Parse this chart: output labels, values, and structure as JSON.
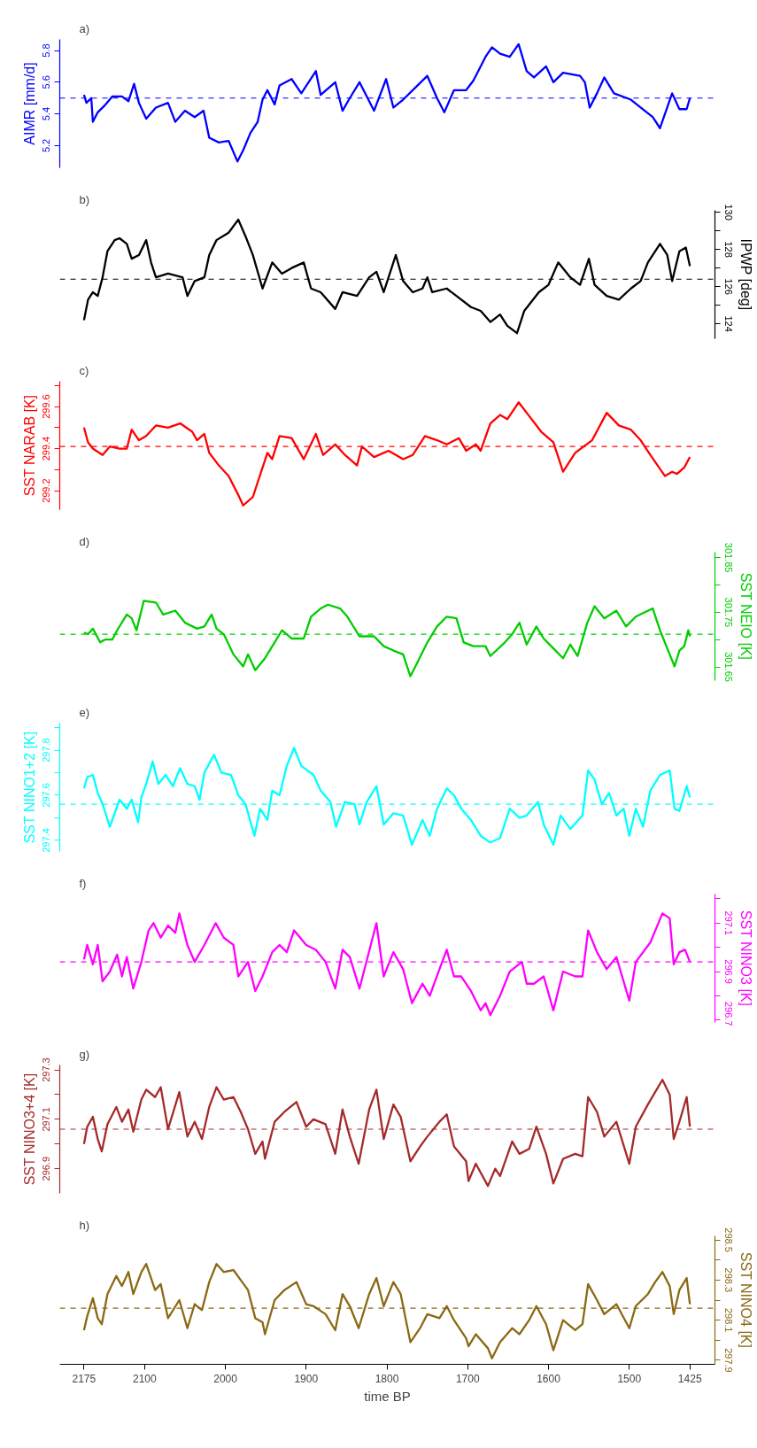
{
  "chart_data": [
    {
      "type": "line",
      "title": "a)",
      "ylabel": "AIMR [mm/d]",
      "tick_labels": "y",
      "xlim": [
        2205,
        1394
      ],
      "ylim": [
        5.06,
        5.87
      ],
      "yticks": [
        5.2,
        5.4,
        5.6,
        5.8
      ],
      "x": [
        2175,
        2172,
        2166,
        2164,
        2158,
        2150,
        2140,
        2128,
        2120,
        2113,
        2107,
        2098,
        2086,
        2071,
        2062,
        2050,
        2038,
        2027,
        2020,
        2008,
        1996,
        1985,
        1978,
        1969,
        1960,
        1954,
        1948,
        1939,
        1933,
        1918,
        1906,
        1888,
        1882,
        1864,
        1855,
        1846,
        1834,
        1816,
        1801,
        1792,
        1780,
        1762,
        1750,
        1738,
        1729,
        1717,
        1702,
        1693,
        1678,
        1670,
        1660,
        1648,
        1637,
        1627,
        1618,
        1603,
        1594,
        1582,
        1561,
        1555,
        1549,
        1540,
        1531,
        1519,
        1498,
        1486,
        1471,
        1462,
        1447,
        1438,
        1429,
        1425
      ],
      "series": [
        {
          "color": "#0000ff",
          "values": [
            5.52,
            5.47,
            5.5,
            5.35,
            5.41,
            5.45,
            5.51,
            5.51,
            5.48,
            5.59,
            5.47,
            5.37,
            5.44,
            5.47,
            5.35,
            5.42,
            5.38,
            5.42,
            5.25,
            5.22,
            5.23,
            5.1,
            5.17,
            5.28,
            5.35,
            5.49,
            5.55,
            5.46,
            5.58,
            5.62,
            5.53,
            5.67,
            5.52,
            5.6,
            5.42,
            5.5,
            5.6,
            5.42,
            5.62,
            5.44,
            5.49,
            5.58,
            5.64,
            5.5,
            5.41,
            5.55,
            5.55,
            5.61,
            5.76,
            5.82,
            5.78,
            5.76,
            5.84,
            5.67,
            5.63,
            5.7,
            5.6,
            5.66,
            5.64,
            5.6,
            5.44,
            5.53,
            5.63,
            5.53,
            5.49,
            5.44,
            5.38,
            5.31,
            5.53,
            5.43,
            5.43,
            5.5
          ]
        }
      ],
      "ref_lines": [
        {
          "axis": "y",
          "value": 5.5,
          "color": "#0000ff",
          "line_style": "dashed"
        }
      ]
    },
    {
      "type": "line",
      "title": "b)",
      "y2label": "IPWP [deg]",
      "tick_labels": "y2",
      "xlim": [
        2205,
        1394
      ],
      "y2lim": [
        123.2,
        130.1
      ],
      "y2ticks": [
        124,
        {
          "value": 125,
          "label": null
        },
        126,
        {
          "value": 127,
          "label": null
        },
        128,
        {
          "value": 129,
          "label": null
        },
        130
      ],
      "x": [
        2175,
        2170,
        2164,
        2158,
        2152,
        2146,
        2137,
        2131,
        2122,
        2116,
        2107,
        2098,
        2092,
        2086,
        2071,
        2053,
        2047,
        2038,
        2026,
        2020,
        2011,
        1996,
        1984,
        1975,
        1966,
        1954,
        1942,
        1930,
        1918,
        1903,
        1894,
        1882,
        1864,
        1855,
        1837,
        1822,
        1813,
        1804,
        1789,
        1780,
        1768,
        1756,
        1750,
        1744,
        1726,
        1714,
        1696,
        1684,
        1672,
        1660,
        1651,
        1639,
        1630,
        1612,
        1600,
        1588,
        1573,
        1561,
        1550,
        1543,
        1528,
        1513,
        1498,
        1486,
        1477,
        1462,
        1453,
        1447,
        1438,
        1430,
        1425
      ],
      "series": [
        {
          "color": "#000000",
          "axis": "y2",
          "values": [
            124.2,
            125.3,
            125.7,
            125.5,
            126.5,
            127.9,
            128.5,
            128.6,
            128.3,
            127.5,
            127.7,
            128.5,
            127.3,
            126.5,
            126.7,
            126.5,
            125.5,
            126.3,
            126.5,
            127.7,
            128.5,
            128.9,
            129.6,
            128.7,
            127.7,
            125.9,
            127.3,
            126.7,
            127.0,
            127.3,
            125.9,
            125.7,
            124.8,
            125.7,
            125.5,
            126.5,
            126.8,
            125.7,
            127.7,
            126.3,
            125.7,
            125.9,
            126.5,
            125.7,
            125.9,
            125.5,
            124.9,
            124.7,
            124.1,
            124.5,
            123.9,
            123.5,
            124.7,
            125.7,
            126.1,
            127.3,
            126.5,
            126.1,
            127.5,
            126.1,
            125.5,
            125.3,
            125.9,
            126.3,
            127.3,
            128.3,
            127.7,
            126.3,
            127.9,
            128.1,
            127.1
          ]
        }
      ],
      "ref_lines": [
        {
          "axis": "y2",
          "value": 126.4,
          "color": "#000000",
          "line_style": "dashed"
        }
      ]
    },
    {
      "type": "line",
      "title": "c)",
      "ylabel": "SST NARAB [K]",
      "tick_labels": "y",
      "xlim": [
        2205,
        1394
      ],
      "ylim": [
        299.11,
        299.72
      ],
      "yticks": [
        299.2,
        {
          "value": 299.3,
          "label": null
        },
        299.4,
        {
          "value": 299.5,
          "label": null
        },
        299.6,
        {
          "value": 299.7,
          "label": null
        }
      ],
      "x": [
        2175,
        2170,
        2164,
        2152,
        2143,
        2131,
        2122,
        2116,
        2107,
        2098,
        2086,
        2071,
        2056,
        2041,
        2035,
        2026,
        2020,
        2008,
        1996,
        1984,
        1978,
        1966,
        1948,
        1942,
        1933,
        1918,
        1903,
        1888,
        1879,
        1864,
        1852,
        1837,
        1831,
        1816,
        1798,
        1780,
        1768,
        1753,
        1738,
        1726,
        1711,
        1702,
        1690,
        1684,
        1672,
        1660,
        1651,
        1637,
        1627,
        1609,
        1594,
        1582,
        1567,
        1546,
        1528,
        1513,
        1498,
        1486,
        1474,
        1456,
        1447,
        1441,
        1432,
        1425
      ],
      "series": [
        {
          "color": "#ff0000",
          "values": [
            299.5,
            299.43,
            299.4,
            299.37,
            299.41,
            299.4,
            299.4,
            299.49,
            299.44,
            299.46,
            299.51,
            299.5,
            299.52,
            299.48,
            299.44,
            299.47,
            299.38,
            299.32,
            299.27,
            299.18,
            299.13,
            299.17,
            299.38,
            299.35,
            299.46,
            299.45,
            299.35,
            299.47,
            299.37,
            299.42,
            299.37,
            299.32,
            299.41,
            299.36,
            299.39,
            299.35,
            299.37,
            299.46,
            299.44,
            299.42,
            299.45,
            299.39,
            299.42,
            299.39,
            299.52,
            299.56,
            299.54,
            299.62,
            299.57,
            299.48,
            299.43,
            299.29,
            299.38,
            299.44,
            299.57,
            299.51,
            299.49,
            299.44,
            299.37,
            299.27,
            299.29,
            299.28,
            299.31,
            299.36
          ]
        }
      ],
      "ref_lines": [
        {
          "axis": "y",
          "value": 299.41,
          "color": "#ff0000",
          "line_style": "dashed"
        }
      ]
    },
    {
      "type": "line",
      "title": "d)",
      "y2label": "SST NEIO [K]",
      "tick_labels": "y2",
      "xlim": [
        2205,
        1394
      ],
      "y2lim": [
        301.625,
        301.86
      ],
      "y2ticks": [
        301.65,
        {
          "value": 301.7,
          "label": null
        },
        301.75,
        {
          "value": 301.8,
          "label": null
        },
        301.85
      ],
      "x": [
        2175,
        2170,
        2164,
        2155,
        2149,
        2140,
        2134,
        2122,
        2116,
        2110,
        2101,
        2086,
        2077,
        2062,
        2050,
        2035,
        2026,
        2017,
        2011,
        2002,
        1990,
        1978,
        1972,
        1963,
        1951,
        1939,
        1930,
        1918,
        1903,
        1894,
        1882,
        1873,
        1858,
        1849,
        1834,
        1816,
        1804,
        1792,
        1780,
        1771,
        1762,
        1750,
        1738,
        1726,
        1714,
        1705,
        1693,
        1678,
        1672,
        1654,
        1645,
        1636,
        1627,
        1615,
        1606,
        1594,
        1582,
        1573,
        1564,
        1552,
        1543,
        1531,
        1516,
        1504,
        1492,
        1471,
        1462,
        1453,
        1444,
        1438,
        1432,
        1427,
        1425
      ],
      "series": [
        {
          "color": "#00cd00",
          "axis": "y2",
          "values": [
            301.713,
            301.71,
            301.72,
            301.695,
            301.7,
            301.7,
            301.717,
            301.746,
            301.739,
            301.717,
            301.771,
            301.768,
            301.746,
            301.753,
            301.731,
            301.72,
            301.724,
            301.746,
            301.72,
            301.71,
            301.673,
            301.651,
            301.673,
            301.644,
            301.666,
            301.695,
            301.717,
            301.702,
            301.702,
            301.742,
            301.757,
            301.764,
            301.757,
            301.742,
            301.706,
            301.706,
            301.688,
            301.68,
            301.673,
            301.633,
            301.659,
            301.695,
            301.724,
            301.742,
            301.739,
            301.695,
            301.688,
            301.688,
            301.67,
            301.695,
            301.71,
            301.731,
            301.691,
            301.724,
            301.702,
            301.684,
            301.666,
            301.691,
            301.67,
            301.731,
            301.761,
            301.739,
            301.753,
            301.724,
            301.742,
            301.757,
            301.717,
            301.684,
            301.651,
            301.68,
            301.688,
            301.717,
            301.706
          ]
        }
      ],
      "ref_lines": [
        {
          "axis": "y2",
          "value": 301.71,
          "color": "#00cd00",
          "line_style": "dashed"
        }
      ]
    },
    {
      "type": "line",
      "title": "e)",
      "ylabel": "SST NINO1+2 [K]",
      "tick_labels": "y",
      "xlim": [
        2205,
        1394
      ],
      "ylim": [
        297.35,
        297.92
      ],
      "yticks": [
        297.4,
        {
          "value": 297.5,
          "label": null
        },
        297.6,
        {
          "value": 297.7,
          "label": null
        },
        297.8,
        {
          "value": 297.9,
          "label": null
        }
      ],
      "x": [
        2175,
        2171,
        2164,
        2158,
        2152,
        2143,
        2137,
        2131,
        2122,
        2116,
        2108,
        2104,
        2098,
        2090,
        2083,
        2074,
        2065,
        2056,
        2047,
        2038,
        2032,
        2026,
        2014,
        2005,
        1993,
        1984,
        1975,
        1964,
        1957,
        1948,
        1942,
        1933,
        1924,
        1915,
        1906,
        1891,
        1882,
        1870,
        1863,
        1852,
        1840,
        1834,
        1825,
        1813,
        1804,
        1792,
        1780,
        1769,
        1756,
        1747,
        1738,
        1726,
        1717,
        1708,
        1696,
        1684,
        1672,
        1660,
        1648,
        1636,
        1627,
        1613,
        1606,
        1594,
        1585,
        1573,
        1558,
        1551,
        1543,
        1534,
        1525,
        1516,
        1507,
        1500,
        1492,
        1483,
        1474,
        1462,
        1450,
        1444,
        1438,
        1429,
        1425
      ],
      "series": [
        {
          "color": "#00ffff",
          "values": [
            297.63,
            297.68,
            297.69,
            297.61,
            297.56,
            297.46,
            297.52,
            297.58,
            297.54,
            297.58,
            297.48,
            297.59,
            297.65,
            297.75,
            297.65,
            297.69,
            297.64,
            297.72,
            297.65,
            297.64,
            297.58,
            297.7,
            297.78,
            297.7,
            297.69,
            297.6,
            297.56,
            297.42,
            297.54,
            297.49,
            297.62,
            297.6,
            297.73,
            297.81,
            297.73,
            297.69,
            297.62,
            297.57,
            297.46,
            297.57,
            297.56,
            297.47,
            297.57,
            297.64,
            297.47,
            297.52,
            297.51,
            297.38,
            297.49,
            297.42,
            297.54,
            297.63,
            297.6,
            297.54,
            297.49,
            297.42,
            297.39,
            297.41,
            297.54,
            297.5,
            297.51,
            297.57,
            297.47,
            297.38,
            297.51,
            297.45,
            297.51,
            297.71,
            297.67,
            297.56,
            297.61,
            297.51,
            297.54,
            297.42,
            297.54,
            297.46,
            297.62,
            297.69,
            297.71,
            297.54,
            297.53,
            297.64,
            297.59
          ]
        }
      ],
      "ref_lines": [
        {
          "axis": "y",
          "value": 297.56,
          "color": "#00ffff",
          "line_style": "dashed"
        }
      ]
    },
    {
      "type": "line",
      "title": "f)",
      "y2label": "SST NINO3 [K]",
      "tick_labels": "y2",
      "xlim": [
        2205,
        1394
      ],
      "y2lim": [
        296.69,
        297.22
      ],
      "y2ticks": [
        296.7,
        {
          "value": 296.8,
          "label": null
        },
        296.9,
        {
          "value": 297.0,
          "label": null
        },
        297.1,
        {
          "value": 297.2,
          "label": null
        }
      ],
      "x": [
        2175,
        2171,
        2164,
        2158,
        2152,
        2143,
        2134,
        2128,
        2122,
        2114,
        2104,
        2095,
        2089,
        2080,
        2071,
        2062,
        2057,
        2047,
        2038,
        2026,
        2012,
        2002,
        1990,
        1984,
        1972,
        1963,
        1954,
        1942,
        1933,
        1924,
        1915,
        1900,
        1888,
        1876,
        1864,
        1855,
        1846,
        1834,
        1813,
        1804,
        1792,
        1780,
        1769,
        1756,
        1747,
        1735,
        1726,
        1717,
        1708,
        1696,
        1684,
        1678,
        1672,
        1660,
        1648,
        1633,
        1627,
        1618,
        1606,
        1594,
        1582,
        1567,
        1558,
        1551,
        1540,
        1528,
        1516,
        1500,
        1492,
        1474,
        1459,
        1450,
        1445,
        1438,
        1431,
        1425
      ],
      "series": [
        {
          "color": "#ff00ff",
          "axis": "y2",
          "values": [
            296.95,
            297.01,
            296.93,
            297.01,
            296.86,
            296.9,
            296.97,
            296.88,
            296.96,
            296.83,
            296.94,
            297.07,
            297.1,
            297.04,
            297.09,
            297.06,
            297.14,
            297.01,
            296.94,
            297.01,
            297.1,
            297.04,
            297.01,
            296.88,
            296.94,
            296.82,
            296.88,
            296.98,
            297.01,
            296.98,
            297.07,
            297.01,
            296.99,
            296.94,
            296.83,
            296.99,
            296.96,
            296.83,
            297.1,
            296.88,
            296.98,
            296.91,
            296.77,
            296.85,
            296.8,
            296.91,
            296.99,
            296.88,
            296.88,
            296.82,
            296.74,
            296.77,
            296.72,
            296.8,
            296.9,
            296.94,
            296.85,
            296.85,
            296.88,
            296.74,
            296.9,
            296.88,
            296.88,
            297.07,
            296.98,
            296.91,
            296.96,
            296.78,
            296.94,
            297.02,
            297.14,
            297.12,
            296.93,
            296.98,
            296.99,
            296.94
          ]
        }
      ],
      "ref_lines": [
        {
          "axis": "y2",
          "value": 296.94,
          "color": "#ff00ff",
          "line_style": "dashed"
        }
      ]
    },
    {
      "type": "line",
      "title": "g)",
      "ylabel": "SST NINO3+4 [K]",
      "tick_labels": "y",
      "xlim": [
        2205,
        1394
      ],
      "ylim": [
        296.8,
        297.32
      ],
      "yticks": [
        296.9,
        {
          "value": 297.0,
          "label": null
        },
        297.1,
        {
          "value": 297.2,
          "label": null
        },
        297.3
      ],
      "x": [
        2175,
        2171,
        2164,
        2158,
        2153,
        2146,
        2135,
        2128,
        2120,
        2114,
        2104,
        2098,
        2087,
        2080,
        2071,
        2057,
        2047,
        2038,
        2029,
        2020,
        2011,
        2002,
        1990,
        1981,
        1972,
        1963,
        1954,
        1951,
        1939,
        1927,
        1912,
        1900,
        1891,
        1876,
        1864,
        1855,
        1846,
        1835,
        1822,
        1813,
        1804,
        1792,
        1783,
        1771,
        1759,
        1750,
        1735,
        1726,
        1717,
        1702,
        1699,
        1690,
        1675,
        1666,
        1660,
        1645,
        1636,
        1624,
        1615,
        1603,
        1594,
        1582,
        1567,
        1558,
        1551,
        1540,
        1531,
        1516,
        1500,
        1492,
        1477,
        1468,
        1459,
        1450,
        1445,
        1438,
        1429,
        1425
      ],
      "series": [
        {
          "color": "#a52a2a",
          "values": [
            297.0,
            297.07,
            297.11,
            297.02,
            296.97,
            297.08,
            297.15,
            297.09,
            297.14,
            297.05,
            297.18,
            297.22,
            297.19,
            297.23,
            297.06,
            297.21,
            297.03,
            297.09,
            297.02,
            297.15,
            297.23,
            297.18,
            297.19,
            297.13,
            297.06,
            296.96,
            297.01,
            296.94,
            297.09,
            297.13,
            297.17,
            297.07,
            297.1,
            297.08,
            296.96,
            297.14,
            297.03,
            296.92,
            297.14,
            297.22,
            297.02,
            297.16,
            297.11,
            296.93,
            296.99,
            297.03,
            297.09,
            297.12,
            296.99,
            296.93,
            296.85,
            296.92,
            296.83,
            296.9,
            296.87,
            297.01,
            296.96,
            296.98,
            297.07,
            296.96,
            296.84,
            296.94,
            296.96,
            296.95,
            297.19,
            297.13,
            297.03,
            297.09,
            296.92,
            297.07,
            297.16,
            297.21,
            297.26,
            297.2,
            297.02,
            297.09,
            297.19,
            297.07
          ]
        }
      ],
      "ref_lines": [
        {
          "axis": "y",
          "value": 297.06,
          "color": "#a52a2a",
          "line_style": "dashed"
        }
      ]
    },
    {
      "type": "line",
      "title": "h)",
      "y2label": "SST NINO4 [K]",
      "xlabel": "time BP",
      "xlim": [
        2205,
        1394
      ],
      "xticks": [
        2175,
        2100,
        2000,
        1900,
        1800,
        1700,
        1600,
        1500,
        1425
      ],
      "y2lim": [
        297.88,
        298.52
      ],
      "y2ticks": [
        297.9,
        {
          "value": 298.0,
          "label": null
        },
        298.1,
        {
          "value": 298.2,
          "label": null
        },
        298.3,
        {
          "value": 298.4,
          "label": null
        },
        298.5
      ],
      "x": [
        2175,
        2171,
        2164,
        2158,
        2153,
        2146,
        2135,
        2128,
        2120,
        2114,
        2104,
        2098,
        2087,
        2080,
        2071,
        2057,
        2047,
        2038,
        2029,
        2020,
        2011,
        2002,
        1990,
        1981,
        1972,
        1963,
        1954,
        1951,
        1939,
        1927,
        1912,
        1900,
        1891,
        1876,
        1864,
        1855,
        1846,
        1835,
        1822,
        1813,
        1804,
        1792,
        1783,
        1771,
        1759,
        1750,
        1735,
        1726,
        1717,
        1702,
        1699,
        1690,
        1675,
        1670,
        1660,
        1645,
        1636,
        1624,
        1615,
        1603,
        1594,
        1582,
        1567,
        1558,
        1551,
        1540,
        1531,
        1516,
        1500,
        1492,
        1477,
        1468,
        1459,
        1450,
        1445,
        1438,
        1429,
        1425
      ],
      "series": [
        {
          "color": "#8b6914",
          "axis": "y2",
          "values": [
            298.05,
            298.12,
            298.21,
            298.11,
            298.08,
            298.23,
            298.32,
            298.27,
            298.34,
            298.23,
            298.34,
            298.38,
            298.25,
            298.28,
            298.11,
            298.2,
            298.06,
            298.18,
            298.15,
            298.29,
            298.38,
            298.34,
            298.35,
            298.3,
            298.25,
            298.11,
            298.09,
            298.03,
            298.2,
            298.25,
            298.29,
            298.18,
            298.17,
            298.13,
            298.05,
            298.23,
            298.17,
            298.06,
            298.23,
            298.31,
            298.17,
            298.29,
            298.23,
            297.99,
            298.06,
            298.13,
            298.11,
            298.17,
            298.1,
            298.01,
            297.97,
            298.03,
            297.96,
            297.91,
            297.99,
            298.06,
            298.03,
            298.1,
            298.17,
            298.08,
            297.95,
            298.1,
            298.05,
            298.08,
            298.28,
            298.2,
            298.13,
            298.18,
            298.06,
            298.17,
            298.23,
            298.29,
            298.34,
            298.27,
            298.13,
            298.25,
            298.31,
            298.18
          ]
        }
      ],
      "ref_lines": [
        {
          "axis": "y2",
          "value": 298.16,
          "color": "#8b6914",
          "line_style": "dashed"
        }
      ]
    }
  ]
}
